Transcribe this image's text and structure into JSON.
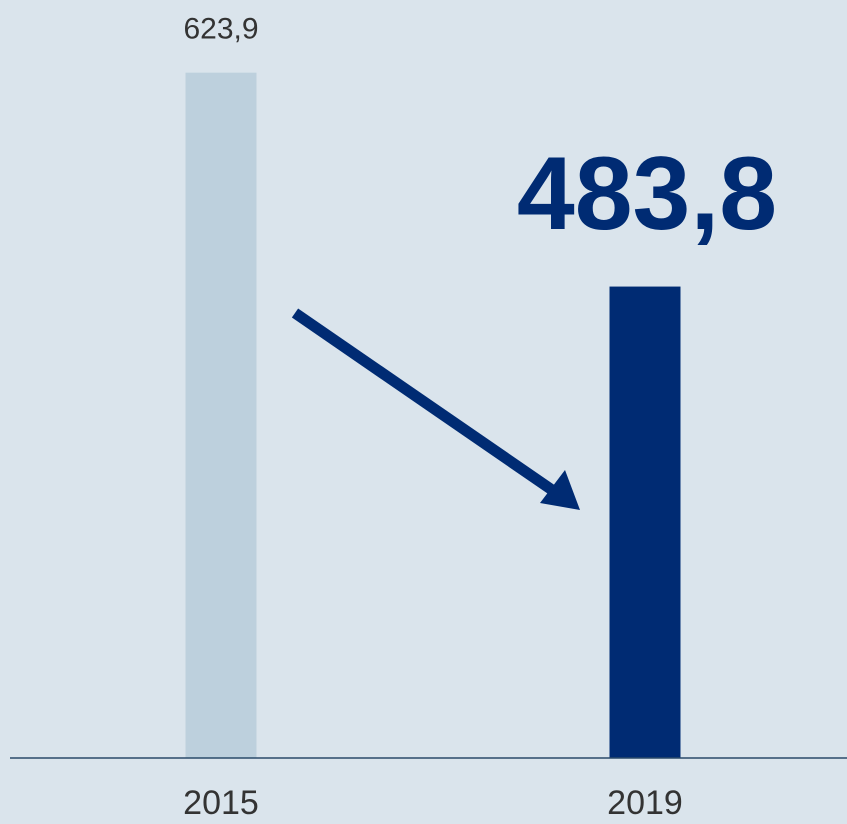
{
  "chart_data": {
    "type": "bar",
    "categories": [
      "2015",
      "2019"
    ],
    "values": [
      623.9,
      483.8
    ],
    "value_labels": [
      "623,9",
      "483,8"
    ],
    "colors": [
      "#bdd0dd",
      "#002b73"
    ],
    "ylim": [
      175,
      625
    ]
  }
}
